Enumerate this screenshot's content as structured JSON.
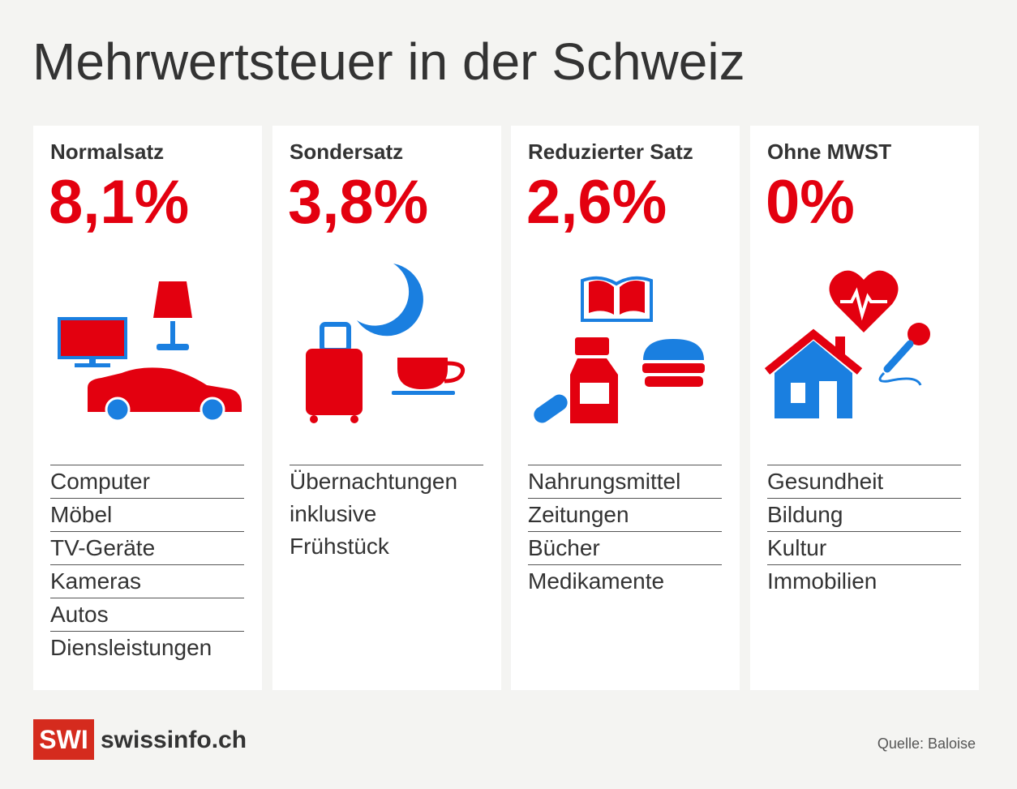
{
  "title": "Mehrwertsteuer in der Schweiz",
  "cards": [
    {
      "heading": "Normalsatz",
      "rate": "8,1%",
      "items": [
        "Computer",
        "Möbel",
        "TV-Geräte",
        "Kameras",
        "Autos",
        "Diensleistungen"
      ]
    },
    {
      "heading": "Sondersatz",
      "rate": "3,8%",
      "items": [
        "Übernachtungen\ninklusive\nFrühstück"
      ]
    },
    {
      "heading": "Reduzierter Satz",
      "rate": "2,6%",
      "items": [
        "Nahrungsmittel",
        "Zeitungen",
        "Bücher",
        "Medikamente"
      ]
    },
    {
      "heading": "Ohne MWST",
      "rate": "0%",
      "items": [
        "Gesundheit",
        "Bildung",
        "Kultur",
        "Immobilien"
      ]
    }
  ],
  "footer": {
    "logo": "SWI",
    "brand": "swissinfo.ch",
    "source": "Quelle: Baloise"
  }
}
